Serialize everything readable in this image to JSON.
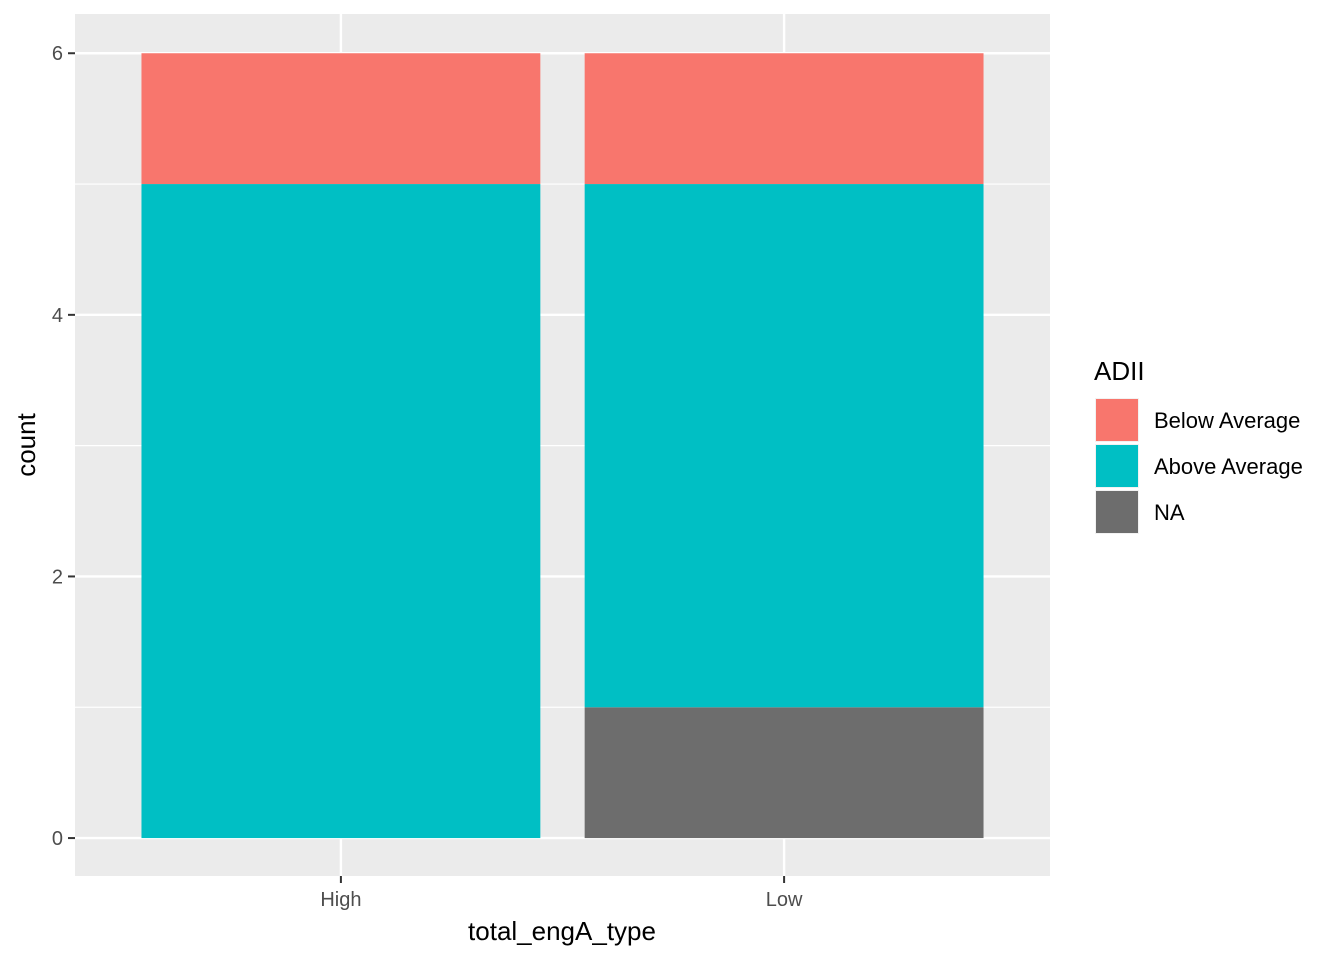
{
  "chart_data": {
    "type": "bar",
    "stacked": true,
    "categories": [
      "High",
      "Low"
    ],
    "series": [
      {
        "name": "Below Average",
        "color": "#F8766D",
        "values": [
          1,
          1
        ]
      },
      {
        "name": "Above Average",
        "color": "#00BFC4",
        "values": [
          5,
          4
        ]
      },
      {
        "name": "NA",
        "color": "#6D6D6D",
        "values": [
          0,
          1
        ]
      }
    ],
    "xlabel": "total_engA_type",
    "ylabel": "count",
    "ylim": [
      -0.29,
      6.3
    ],
    "yticks": [
      0,
      2,
      4,
      6
    ],
    "ytick_labels": [
      "0",
      "2",
      "4",
      "6"
    ],
    "grid": true,
    "legend": {
      "title": "ADII",
      "position": "right"
    },
    "panel_background": "#EBEBEB"
  }
}
